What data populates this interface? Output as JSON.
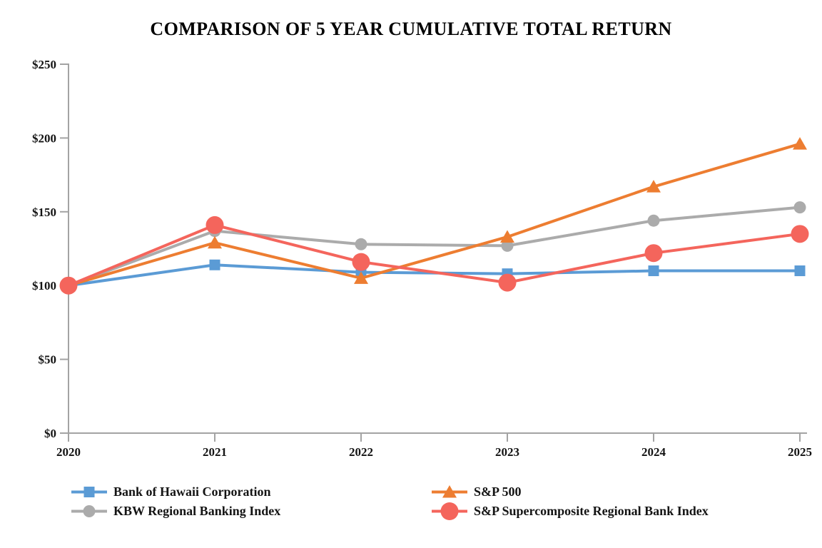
{
  "chart_data": {
    "type": "line",
    "title": "COMPARISON OF 5 YEAR CUMULATIVE TOTAL RETURN",
    "xlabel": "",
    "ylabel": "",
    "categories": [
      "2020",
      "2021",
      "2022",
      "2023",
      "2024",
      "2025"
    ],
    "series": [
      {
        "name": "Bank of Hawaii Corporation",
        "color": "#5B9BD5",
        "marker": "square",
        "values": [
          100,
          114,
          109,
          108,
          110,
          110
        ]
      },
      {
        "name": "KBW Regional Banking Index",
        "color": "#ABABAB",
        "marker": "circle",
        "values": [
          100,
          137,
          128,
          127,
          144,
          153
        ]
      },
      {
        "name": "S&P 500",
        "color": "#ED7D31",
        "marker": "triangle",
        "values": [
          100,
          129,
          105,
          133,
          167,
          196
        ]
      },
      {
        "name": "S&P Supercomposite Regional Bank Index",
        "color": "#F4655C",
        "marker": "circle-large",
        "values": [
          100,
          141,
          116,
          102,
          122,
          135
        ]
      }
    ],
    "ylim": [
      0,
      250
    ],
    "y_ticks": [
      {
        "value": 0,
        "label": "$0"
      },
      {
        "value": 50,
        "label": "$50"
      },
      {
        "value": 100,
        "label": "$100"
      },
      {
        "value": 150,
        "label": "$150"
      },
      {
        "value": 200,
        "label": "$200"
      },
      {
        "value": 250,
        "label": "$250"
      }
    ],
    "grid": false,
    "legend_position": "bottom",
    "axis_color": "#A3A3A3",
    "text_color": "#141414"
  }
}
